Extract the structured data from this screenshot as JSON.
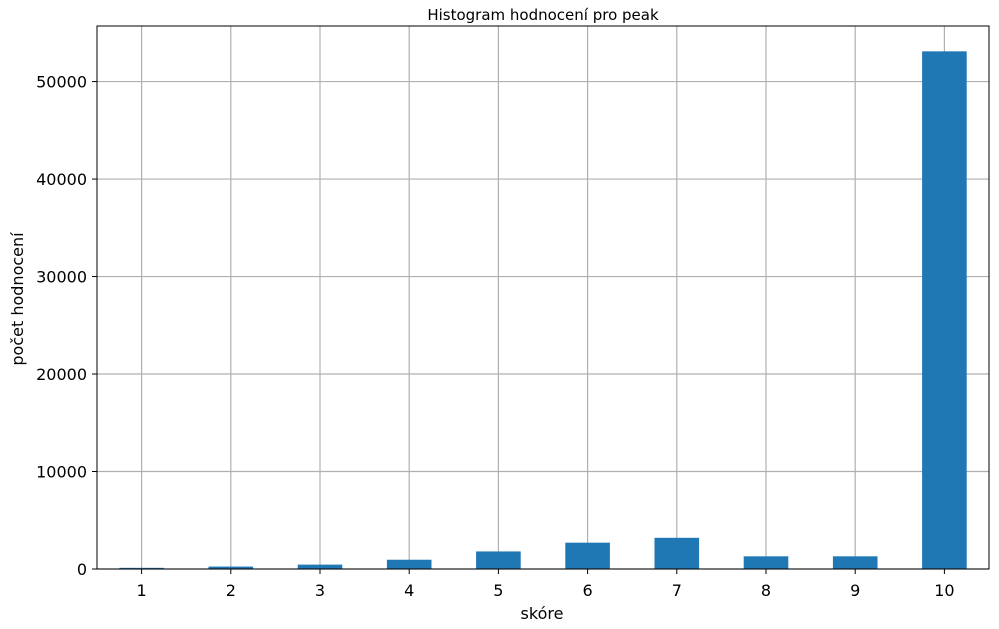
{
  "chart_data": {
    "type": "bar",
    "title": "Histogram hodnocení pro peak",
    "xlabel": "skóre",
    "ylabel": "počet hodnocení",
    "categories": [
      "1",
      "2",
      "3",
      "4",
      "5",
      "6",
      "7",
      "8",
      "9",
      "10"
    ],
    "values": [
      120,
      250,
      450,
      950,
      1800,
      2700,
      3200,
      1300,
      1300,
      53100
    ],
    "ylim": [
      0,
      55700
    ],
    "yticks": [
      0,
      10000,
      20000,
      30000,
      40000,
      50000
    ],
    "grid": true,
    "bar_color": "#1f77b4",
    "grid_color": "#b0b0b0"
  }
}
